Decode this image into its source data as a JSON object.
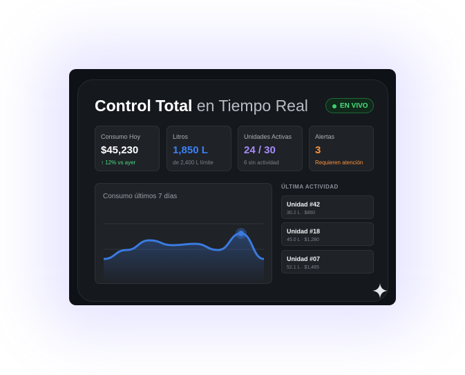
{
  "header": {
    "title_bold": "Control Total",
    "title_light": "en Tiempo Real",
    "badge": "EN VIVO"
  },
  "stats": [
    {
      "label": "Consumo Hoy",
      "value": "$45,230",
      "sub": "↑ 12% vs ayer"
    },
    {
      "label": "Litros",
      "value": "1,850 L",
      "sub": "de 2,400 L límite"
    },
    {
      "label": "Unidades Activas",
      "value": "24 / 30",
      "sub": "6 sin actividad"
    },
    {
      "label": "Alertas",
      "value": "3",
      "sub": "Requieren atención"
    }
  ],
  "chart_data": {
    "type": "line",
    "title": "Consumo últimos 7 días",
    "values": [
      25,
      38,
      52,
      45,
      47,
      38,
      62,
      25
    ],
    "color": "#3b7be0",
    "highlight_index": 6
  },
  "activity": {
    "title": "ÚLTIMA ACTIVIDAD",
    "items": [
      {
        "name": "Unidad #42",
        "detail": "30.2 L · $860"
      },
      {
        "name": "Unidad #18",
        "detail": "45.0 L · $1,280"
      },
      {
        "name": "Unidad #07",
        "detail": "52.1 L · $1,485"
      }
    ]
  }
}
